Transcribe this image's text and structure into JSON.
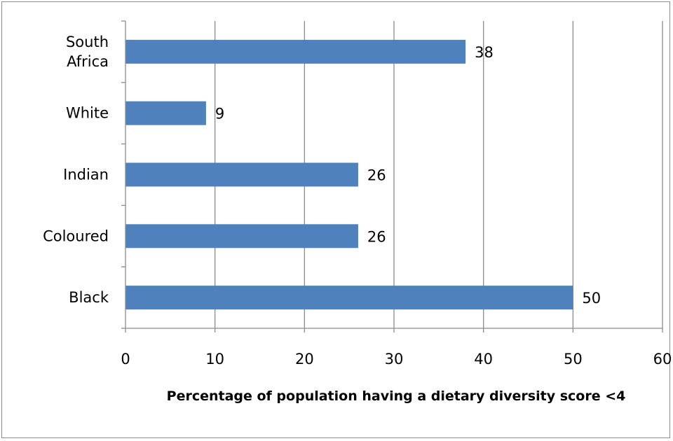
{
  "chart_data": {
    "type": "bar",
    "orientation": "horizontal",
    "categories": [
      [
        "South",
        "Africa"
      ],
      [
        "White"
      ],
      [
        "Indian"
      ],
      [
        "Coloured"
      ],
      [
        "Black"
      ]
    ],
    "values": [
      38,
      9,
      26,
      26,
      50
    ],
    "xlabel": "Percentage of population  having a dietary diversity score <4",
    "xlim": [
      0,
      60
    ],
    "xticks": [
      0,
      10,
      20,
      30,
      40,
      50,
      60
    ],
    "grid": "vertical",
    "legend": "none",
    "bar_color": "#4f81bd",
    "grid_color": "#8c8c8c"
  }
}
